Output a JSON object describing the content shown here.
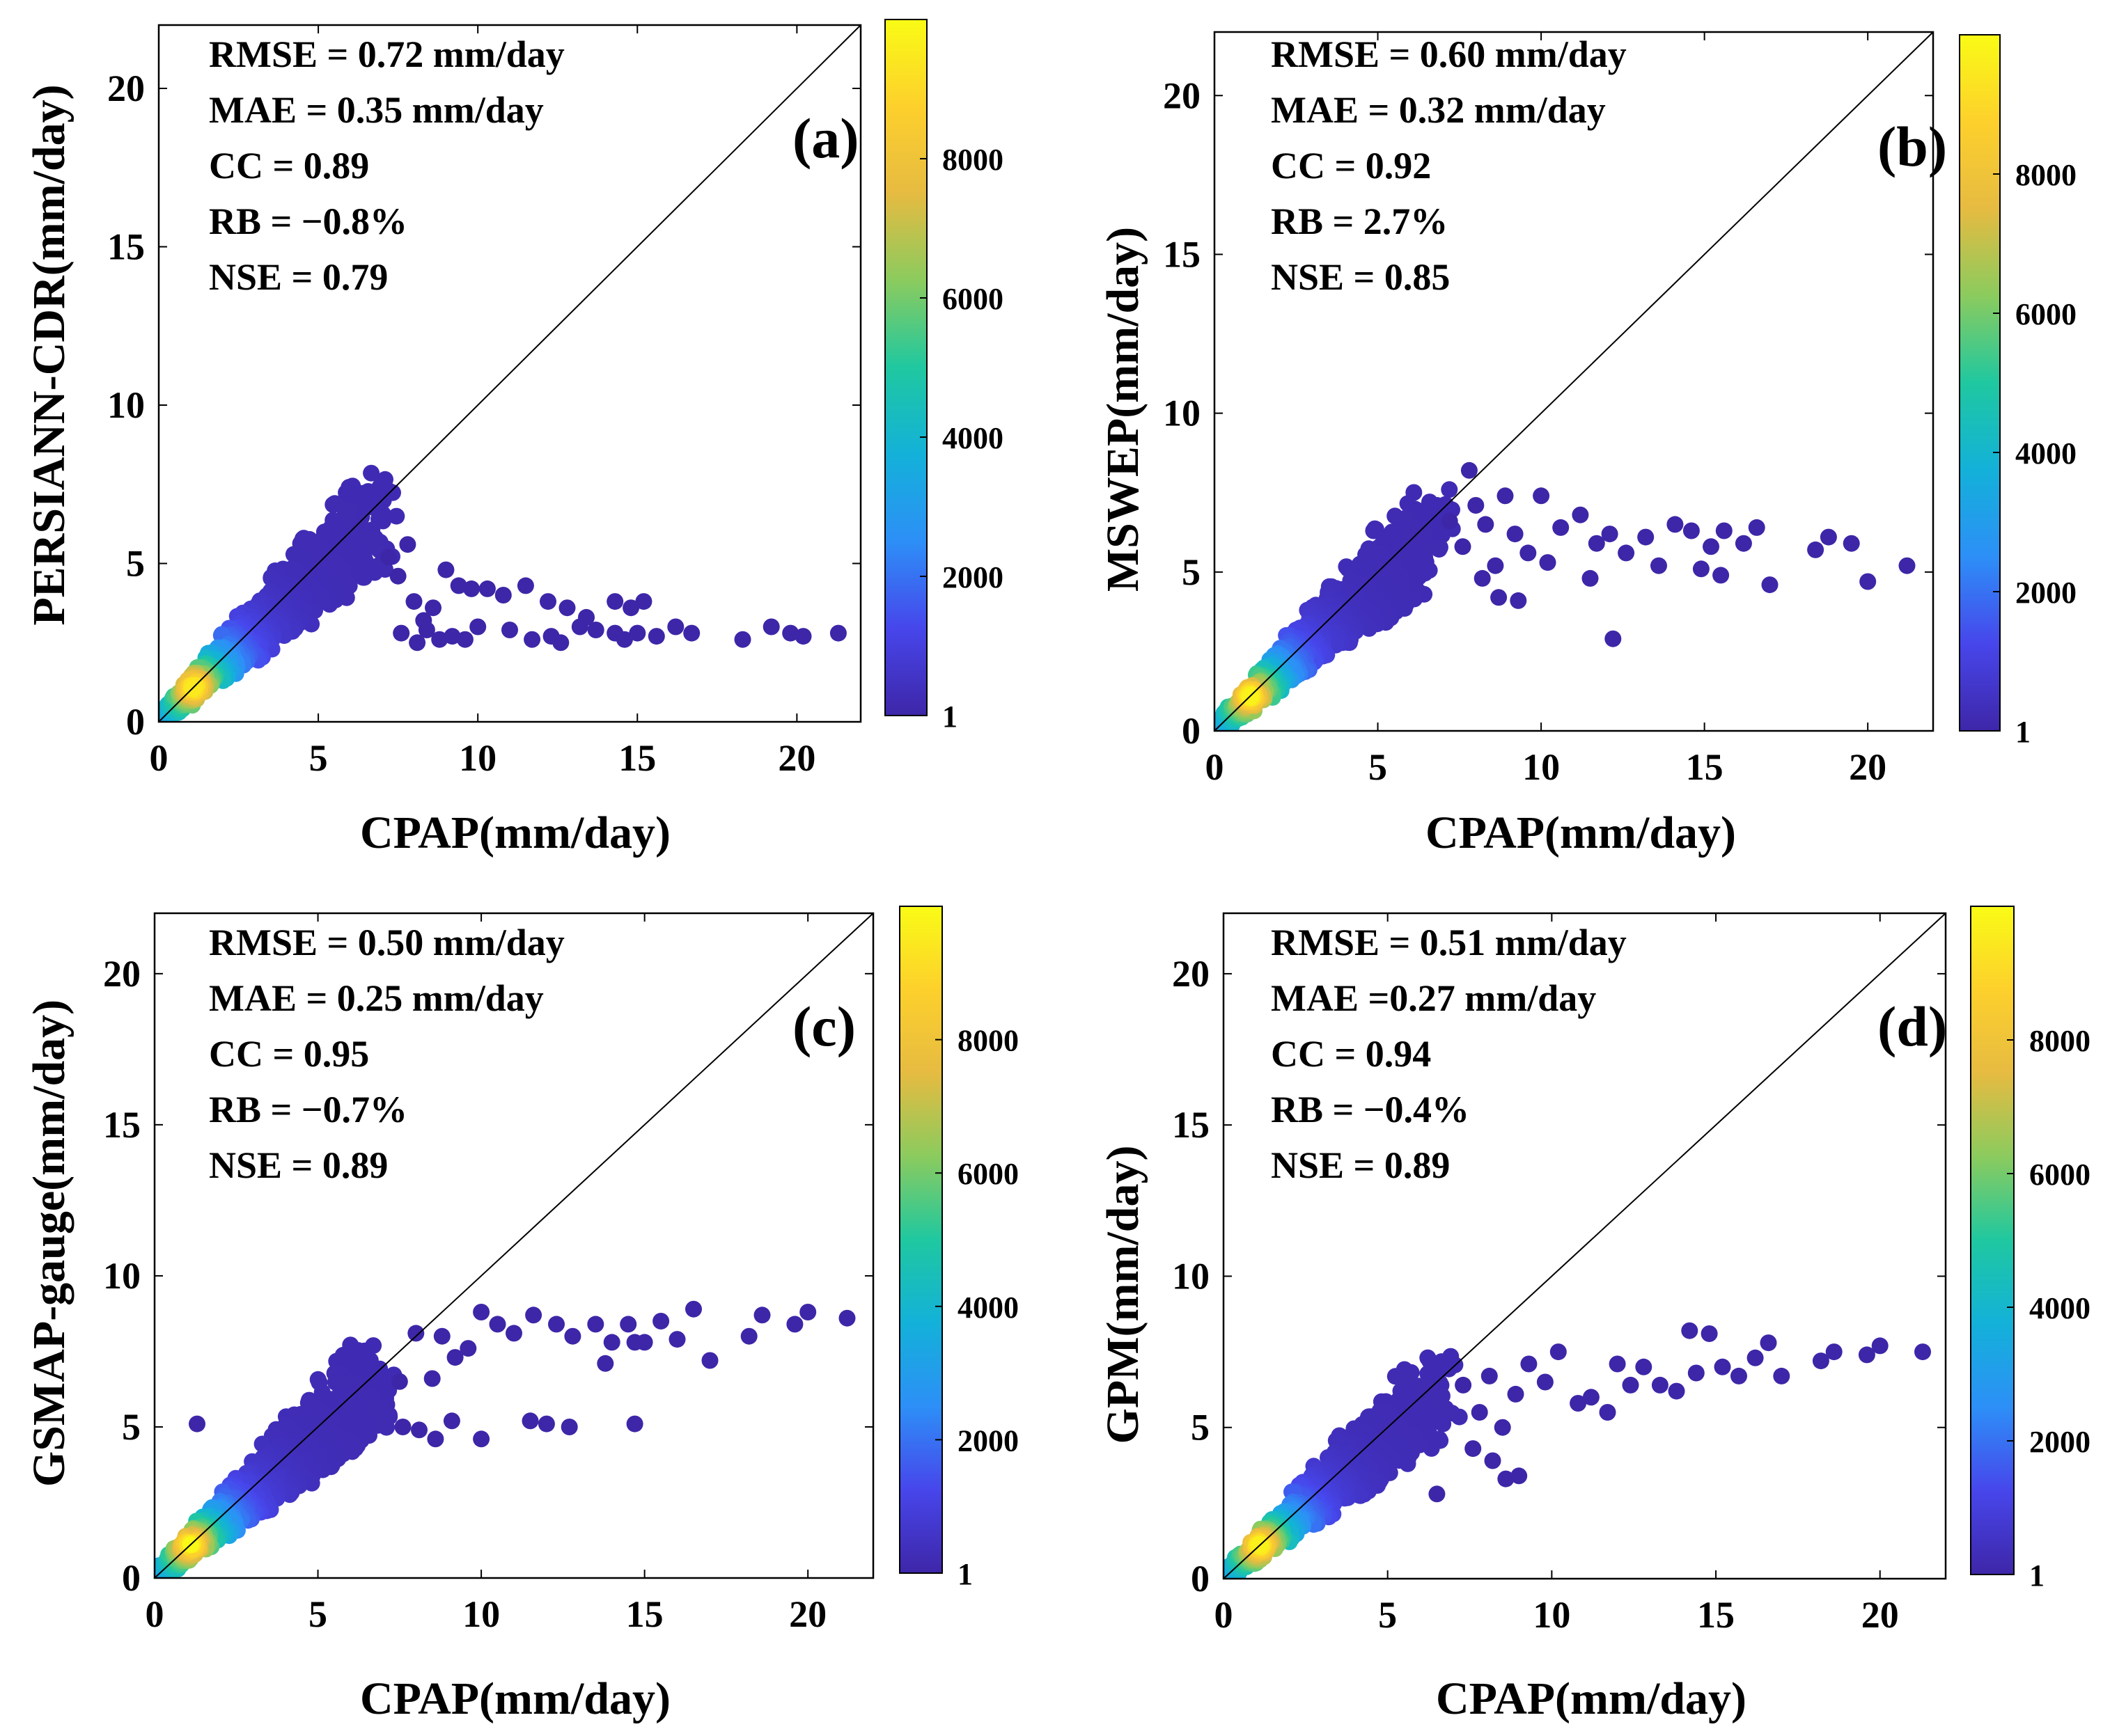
{
  "figure": {
    "colorbar": {
      "ticks": [
        1,
        2000,
        4000,
        6000,
        8000
      ],
      "max": 10000,
      "colormap": [
        "#3e26a8",
        "#4746eb",
        "#2d8ff7",
        "#13b1d9",
        "#1fc8a0",
        "#8bcb5e",
        "#e6bb41",
        "#fdd02c",
        "#f9fb15"
      ]
    }
  },
  "chart_data": [
    {
      "type": "scatter",
      "panel_label": "(a)",
      "xlabel": "CPAP(mm/day)",
      "ylabel": "PERSIANN-CDR(mm/day)",
      "xlim": [
        0,
        22
      ],
      "ylim": [
        0,
        22
      ],
      "xticks": [
        0,
        5,
        10,
        15,
        20
      ],
      "yticks": [
        0,
        5,
        10,
        15,
        20
      ],
      "one_to_one_line": true,
      "stats": [
        "RMSE = 0.72 mm/day",
        "MAE = 0.35 mm/day",
        "CC = 0.89",
        "RB = −0.8%",
        "NSE = 0.79"
      ],
      "points": [
        [
          7.2,
          5.2
        ],
        [
          7.5,
          4.6
        ],
        [
          7.8,
          5.6
        ],
        [
          8.0,
          3.8
        ],
        [
          8.3,
          3.2
        ],
        [
          8.6,
          3.6
        ],
        [
          9.0,
          4.8
        ],
        [
          9.4,
          4.3
        ],
        [
          9.8,
          4.2
        ],
        [
          10.3,
          4.2
        ],
        [
          10.8,
          4.0
        ],
        [
          11.5,
          4.3
        ],
        [
          12.2,
          3.8
        ],
        [
          12.8,
          3.6
        ],
        [
          13.4,
          3.3
        ],
        [
          14.3,
          3.8
        ],
        [
          14.8,
          3.6
        ],
        [
          15.2,
          3.8
        ],
        [
          7.6,
          2.8
        ],
        [
          8.1,
          2.5
        ],
        [
          8.4,
          2.9
        ],
        [
          8.8,
          2.6
        ],
        [
          9.2,
          2.7
        ],
        [
          9.6,
          2.6
        ],
        [
          10.0,
          3.0
        ],
        [
          11.0,
          2.9
        ],
        [
          11.7,
          2.6
        ],
        [
          12.3,
          2.7
        ],
        [
          12.6,
          2.5
        ],
        [
          13.2,
          3.0
        ],
        [
          13.7,
          2.9
        ],
        [
          14.3,
          2.8
        ],
        [
          14.6,
          2.6
        ],
        [
          15.0,
          2.8
        ],
        [
          15.6,
          2.7
        ],
        [
          16.2,
          3.0
        ],
        [
          16.7,
          2.8
        ],
        [
          18.3,
          2.6
        ],
        [
          19.2,
          3.0
        ],
        [
          19.8,
          2.8
        ],
        [
          20.2,
          2.7
        ],
        [
          21.3,
          2.8
        ]
      ]
    },
    {
      "type": "scatter",
      "panel_label": "(b)",
      "xlabel": "CPAP(mm/day)",
      "ylabel": "MSWEP(mm/day)",
      "xlim": [
        0,
        22
      ],
      "ylim": [
        0,
        22
      ],
      "xticks": [
        0,
        5,
        10,
        15,
        20
      ],
      "yticks": [
        0,
        5,
        10,
        15,
        20
      ],
      "one_to_one_line": true,
      "stats": [
        "RMSE = 0.60 mm/day",
        "MAE = 0.32 mm/day",
        "CC = 0.92",
        "RB = 2.7%",
        "NSE = 0.85"
      ],
      "points": [
        [
          7.2,
          6.6
        ],
        [
          7.6,
          5.8
        ],
        [
          7.8,
          8.2
        ],
        [
          8.0,
          7.1
        ],
        [
          8.3,
          6.5
        ],
        [
          8.6,
          5.2
        ],
        [
          8.9,
          7.4
        ],
        [
          9.2,
          6.2
        ],
        [
          9.6,
          5.6
        ],
        [
          10.0,
          7.4
        ],
        [
          10.6,
          6.4
        ],
        [
          11.2,
          6.8
        ],
        [
          11.7,
          5.9
        ],
        [
          12.1,
          6.2
        ],
        [
          12.6,
          5.6
        ],
        [
          13.2,
          6.1
        ],
        [
          13.6,
          5.2
        ],
        [
          14.1,
          6.5
        ],
        [
          14.6,
          6.3
        ],
        [
          15.2,
          5.8
        ],
        [
          15.6,
          6.3
        ],
        [
          16.2,
          5.9
        ],
        [
          16.6,
          6.4
        ],
        [
          17.0,
          4.6
        ],
        [
          18.4,
          5.7
        ],
        [
          18.8,
          6.1
        ],
        [
          19.5,
          5.9
        ],
        [
          20.0,
          4.7
        ],
        [
          21.2,
          5.2
        ],
        [
          8.2,
          4.8
        ],
        [
          8.7,
          4.2
        ],
        [
          9.3,
          4.1
        ],
        [
          10.2,
          5.3
        ],
        [
          11.5,
          4.8
        ],
        [
          12.2,
          2.9
        ],
        [
          14.9,
          5.1
        ],
        [
          15.5,
          4.9
        ]
      ]
    },
    {
      "type": "scatter",
      "panel_label": "(c)",
      "xlabel": "CPAP(mm/day)",
      "ylabel": "GSMAP-gauge(mm/day)",
      "xlim": [
        0,
        22
      ],
      "ylim": [
        0,
        22
      ],
      "xticks": [
        0,
        5,
        10,
        15,
        20
      ],
      "yticks": [
        0,
        5,
        10,
        15,
        20
      ],
      "one_to_one_line": true,
      "stats": [
        "RMSE = 0.50 mm/day",
        "MAE = 0.25 mm/day",
        "CC = 0.95",
        "RB = −0.7%",
        "NSE = 0.89"
      ],
      "points": [
        [
          7.5,
          6.5
        ],
        [
          8.0,
          8.1
        ],
        [
          8.5,
          6.6
        ],
        [
          8.8,
          8.0
        ],
        [
          9.2,
          7.3
        ],
        [
          9.6,
          7.6
        ],
        [
          10.0,
          8.8
        ],
        [
          10.5,
          8.4
        ],
        [
          11.0,
          8.1
        ],
        [
          11.6,
          8.7
        ],
        [
          12.3,
          8.4
        ],
        [
          12.8,
          8.0
        ],
        [
          13.5,
          8.4
        ],
        [
          14.0,
          7.8
        ],
        [
          14.5,
          8.4
        ],
        [
          15.0,
          7.8
        ],
        [
          15.5,
          8.5
        ],
        [
          16.0,
          7.9
        ],
        [
          16.5,
          8.9
        ],
        [
          17.0,
          7.2
        ],
        [
          18.2,
          8.0
        ],
        [
          18.6,
          8.7
        ],
        [
          19.6,
          8.4
        ],
        [
          20.0,
          8.8
        ],
        [
          21.2,
          8.6
        ],
        [
          7.6,
          5.0
        ],
        [
          8.1,
          4.9
        ],
        [
          8.6,
          4.6
        ],
        [
          9.1,
          5.2
        ],
        [
          10.0,
          4.6
        ],
        [
          11.5,
          5.2
        ],
        [
          12.0,
          5.1
        ],
        [
          12.7,
          5.0
        ],
        [
          14.7,
          5.1
        ],
        [
          1.3,
          5.1
        ],
        [
          13.8,
          7.1
        ],
        [
          14.7,
          7.8
        ]
      ]
    },
    {
      "type": "scatter",
      "panel_label": "(d)",
      "xlabel": "CPAP(mm/day)",
      "ylabel": "GPM(mm/day)",
      "xlim": [
        0,
        22
      ],
      "ylim": [
        0,
        22
      ],
      "xticks": [
        0,
        5,
        10,
        15,
        20
      ],
      "yticks": [
        0,
        5,
        10,
        15,
        20
      ],
      "one_to_one_line": true,
      "stats": [
        "RMSE = 0.51 mm/day",
        "MAE =0.27 mm/day",
        "CC = 0.94",
        "RB = −0.4%",
        "NSE = 0.89"
      ],
      "points": [
        [
          7.3,
          6.4
        ],
        [
          7.8,
          5.5
        ],
        [
          8.1,
          6.7
        ],
        [
          8.5,
          5.0
        ],
        [
          8.9,
          6.1
        ],
        [
          9.3,
          7.1
        ],
        [
          9.8,
          6.5
        ],
        [
          10.2,
          7.5
        ],
        [
          10.8,
          5.8
        ],
        [
          11.2,
          6.0
        ],
        [
          11.7,
          5.5
        ],
        [
          12.0,
          7.1
        ],
        [
          12.4,
          6.4
        ],
        [
          12.8,
          7.0
        ],
        [
          13.3,
          6.4
        ],
        [
          13.8,
          6.2
        ],
        [
          14.2,
          8.2
        ],
        [
          14.4,
          6.8
        ],
        [
          14.8,
          8.1
        ],
        [
          15.2,
          7.0
        ],
        [
          15.7,
          6.7
        ],
        [
          16.2,
          7.3
        ],
        [
          16.6,
          7.8
        ],
        [
          17.0,
          6.7
        ],
        [
          18.2,
          7.2
        ],
        [
          18.6,
          7.5
        ],
        [
          19.6,
          7.4
        ],
        [
          20.0,
          7.7
        ],
        [
          21.3,
          7.5
        ],
        [
          7.6,
          4.3
        ],
        [
          8.2,
          3.9
        ],
        [
          8.6,
          3.3
        ],
        [
          9.0,
          3.4
        ],
        [
          6.5,
          2.8
        ]
      ]
    }
  ]
}
